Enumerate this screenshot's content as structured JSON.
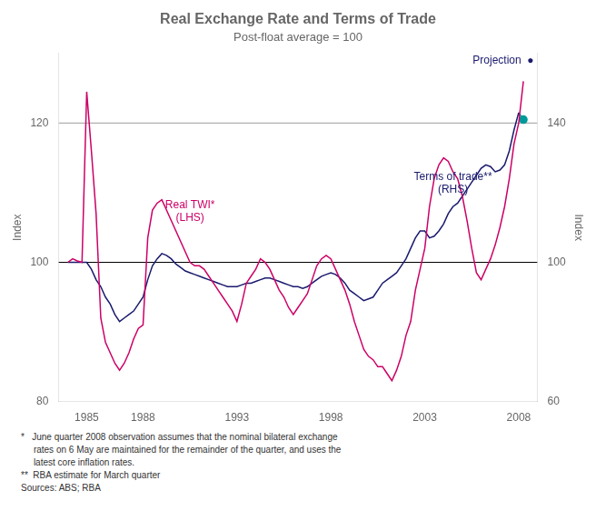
{
  "chart_data": {
    "type": "line",
    "title": "Real Exchange Rate and Terms of Trade",
    "subtitle": "Post-float average = 100",
    "ylabel": "Index",
    "y2label": "Index",
    "grid": false,
    "xlim": [
      1983.5,
      2009.0
    ],
    "xticks": [
      1985,
      1988,
      1993,
      1998,
      2003,
      2008
    ],
    "ylim": [
      80,
      130
    ],
    "yticks": [
      80,
      100,
      120
    ],
    "y2lim": [
      60,
      160
    ],
    "y2ticks": [
      60,
      100,
      140
    ],
    "x": [
      1984.0,
      1984.25,
      1984.5,
      1984.75,
      1985.0,
      1985.25,
      1985.5,
      1985.75,
      1986.0,
      1986.25,
      1986.5,
      1986.75,
      1987.0,
      1987.25,
      1987.5,
      1987.75,
      1988.0,
      1988.25,
      1988.5,
      1988.75,
      1989.0,
      1989.25,
      1989.5,
      1989.75,
      1990.0,
      1990.25,
      1990.5,
      1990.75,
      1991.0,
      1991.25,
      1991.5,
      1991.75,
      1992.0,
      1992.25,
      1992.5,
      1992.75,
      1993.0,
      1993.25,
      1993.5,
      1993.75,
      1994.0,
      1994.25,
      1994.5,
      1994.75,
      1995.0,
      1995.25,
      1995.5,
      1995.75,
      1996.0,
      1996.25,
      1996.5,
      1996.75,
      1997.0,
      1997.25,
      1997.5,
      1997.75,
      1998.0,
      1998.25,
      1998.5,
      1998.75,
      1999.0,
      1999.25,
      1999.5,
      1999.75,
      2000.0,
      2000.25,
      2000.5,
      2000.75,
      2001.0,
      2001.25,
      2001.5,
      2001.75,
      2002.0,
      2002.25,
      2002.5,
      2002.75,
      2003.0,
      2003.25,
      2003.5,
      2003.75,
      2004.0,
      2004.25,
      2004.5,
      2004.75,
      2005.0,
      2005.25,
      2005.5,
      2005.75,
      2006.0,
      2006.25,
      2006.5,
      2006.75,
      2007.0,
      2007.25,
      2007.5,
      2007.75,
      2008.0,
      2008.25
    ],
    "series": [
      {
        "color": "#cc0066",
        "axis": "y",
        "values": [
          100.0,
          100.5,
          100.2,
          100.0,
          124.5,
          116.0,
          107.0,
          92.0,
          88.5,
          87.0,
          85.5,
          84.5,
          85.5,
          87.0,
          89.0,
          90.5,
          91.0,
          103.5,
          107.5,
          108.5,
          109.0,
          107.5,
          106.0,
          104.5,
          103.0,
          101.5,
          100.0,
          99.5,
          99.5,
          99.0,
          98.0,
          97.0,
          96.0,
          95.0,
          94.0,
          93.0,
          91.5,
          94.0,
          97.0,
          98.0,
          99.0,
          100.5,
          100.0,
          99.0,
          97.5,
          96.0,
          95.0,
          93.5,
          92.5,
          93.5,
          94.5,
          95.5,
          97.5,
          99.5,
          100.5,
          101.0,
          100.5,
          99.0,
          97.5,
          96.0,
          94.0,
          91.5,
          89.5,
          87.5,
          86.5,
          86.0,
          85.0,
          85.0,
          84.0,
          83.0,
          84.5,
          86.5,
          89.5,
          91.5,
          96.0,
          99.0,
          102.0,
          108.0,
          112.0,
          114.0,
          115.0,
          114.5,
          113.0,
          112.0,
          109.5,
          106.0,
          102.0,
          98.5,
          97.5,
          99.0,
          100.5,
          102.5,
          105.0,
          108.0,
          112.0,
          117.0,
          120.0,
          126.0
        ]
      },
      {
        "color": "#1a1a6e",
        "axis": "y2",
        "values": [
          100.0,
          100.0,
          100.0,
          100.0,
          100.0,
          98.0,
          95.0,
          93.0,
          90.0,
          88.0,
          85.0,
          83.0,
          84.0,
          85.0,
          86.0,
          88.0,
          90.0,
          95.0,
          99.0,
          101.0,
          102.5,
          102.0,
          101.0,
          99.5,
          98.5,
          97.5,
          97.0,
          96.5,
          96.0,
          95.5,
          95.0,
          94.5,
          94.0,
          93.5,
          93.0,
          93.0,
          93.0,
          93.5,
          94.0,
          94.0,
          94.5,
          95.0,
          95.5,
          95.5,
          95.0,
          94.5,
          94.0,
          93.5,
          93.0,
          93.0,
          92.5,
          93.0,
          94.0,
          95.0,
          96.0,
          96.5,
          97.0,
          96.5,
          95.5,
          94.0,
          92.0,
          91.0,
          90.0,
          89.0,
          89.5,
          90.0,
          92.0,
          94.0,
          95.0,
          96.0,
          97.0,
          99.0,
          101.0,
          104.0,
          107.0,
          109.0,
          109.0,
          107.0,
          107.5,
          109.0,
          111.0,
          114.0,
          116.0,
          117.0,
          119.0,
          121.0,
          123.0,
          125.0,
          127.0,
          128.0,
          127.5,
          126.0,
          126.5,
          128.0,
          132.0,
          138.0,
          143.0,
          null
        ]
      },
      {
        "color": "#009999",
        "axis": "y2",
        "marker": "circle",
        "values": [
          null,
          null,
          null,
          null,
          null,
          null,
          null,
          null,
          null,
          null,
          null,
          null,
          null,
          null,
          null,
          null,
          null,
          null,
          null,
          null,
          null,
          null,
          null,
          null,
          null,
          null,
          null,
          null,
          null,
          null,
          null,
          null,
          null,
          null,
          null,
          null,
          null,
          null,
          null,
          null,
          null,
          null,
          null,
          null,
          null,
          null,
          null,
          null,
          null,
          null,
          null,
          null,
          null,
          null,
          null,
          null,
          null,
          null,
          null,
          null,
          null,
          null,
          null,
          null,
          null,
          null,
          null,
          null,
          null,
          null,
          null,
          null,
          null,
          null,
          null,
          null,
          null,
          null,
          null,
          null,
          null,
          null,
          null,
          null,
          null,
          null,
          null,
          null,
          null,
          null,
          null,
          null,
          null,
          null,
          null,
          null,
          143.0,
          141.0
        ]
      }
    ],
    "hlines": [
      {
        "y": 100,
        "color": "#000000"
      },
      {
        "y": 120,
        "color": "#b0b0b0"
      }
    ],
    "annotations": [
      {
        "text": "Projection  ●",
        "color": "#1a1a6e"
      },
      {
        "text": "Real TWI*\n(LHS)",
        "x": 1990.5,
        "y": 109,
        "axis": "y",
        "color": "#cc0066"
      },
      {
        "text": "Terms of trade**\n(RHS)",
        "x": 2004.5,
        "y": 113,
        "axis": "y",
        "color": "#1a1a6e"
      }
    ],
    "footnotes": [
      "*   June quarter 2008 observation assumes that the nominal bilateral exchange",
      "     rates on 6 May are maintained for the remainder of the quarter, and uses the",
      "     latest core inflation rates.",
      "**  RBA estimate for March quarter",
      "Sources: ABS; RBA"
    ]
  }
}
